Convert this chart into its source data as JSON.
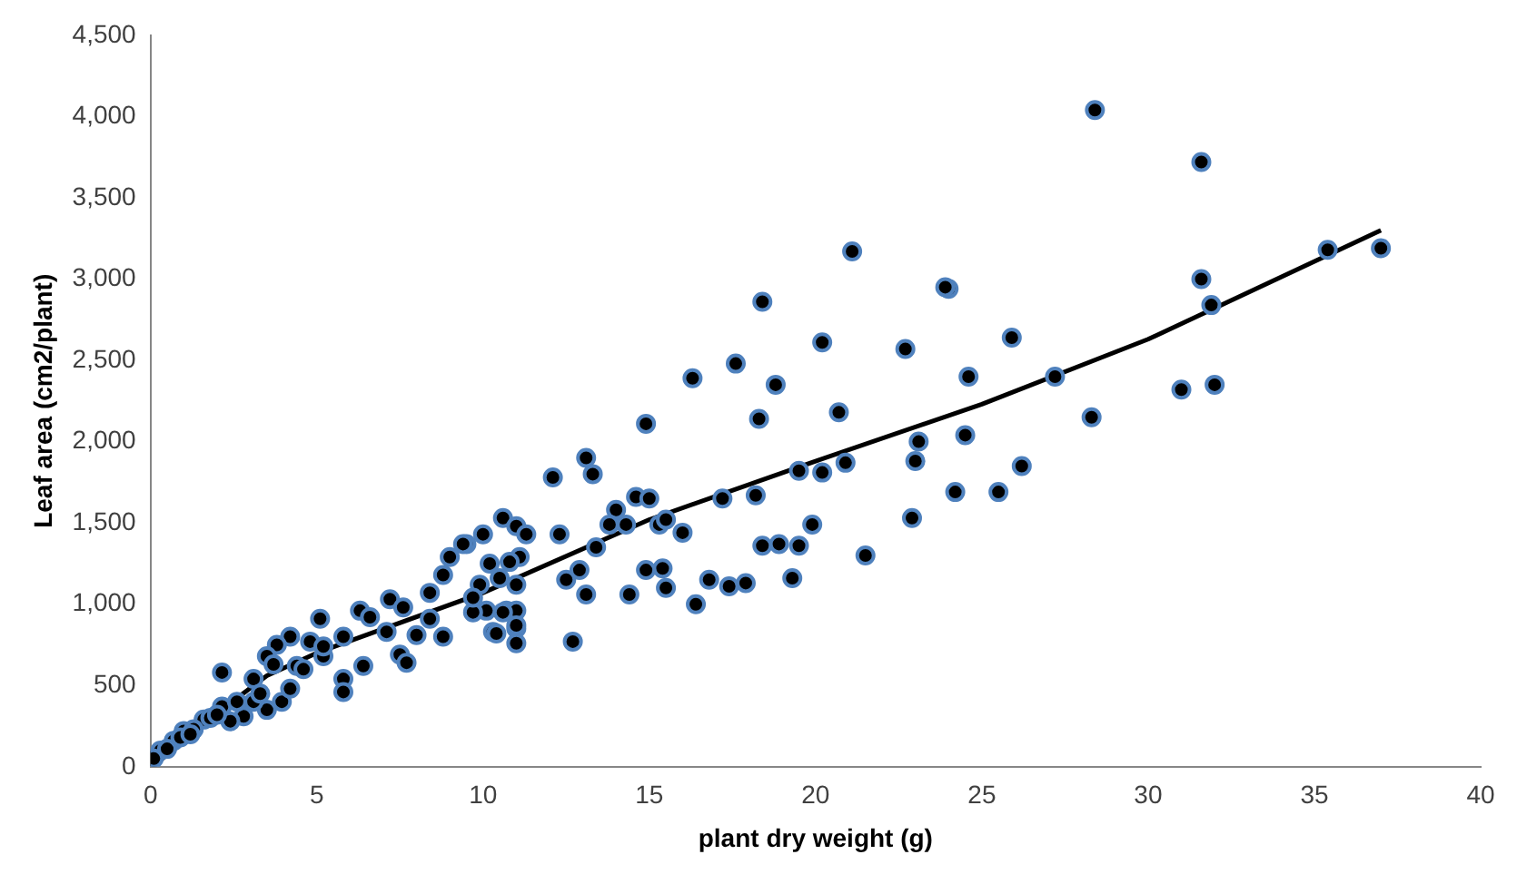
{
  "chart_data": {
    "type": "scatter",
    "xlabel": "plant dry weight (g)",
    "ylabel": "Leaf area (cm2/plant)",
    "xlim": [
      0,
      40
    ],
    "xticks": [
      0,
      5,
      10,
      15,
      20,
      25,
      30,
      35,
      40
    ],
    "ylim": [
      0,
      4500
    ],
    "yticks": [
      0,
      {
        "value": 500,
        "label": "500"
      },
      {
        "value": 1000,
        "label": "1,000"
      },
      {
        "value": 1500,
        "label": "1,500"
      },
      {
        "value": 2000,
        "label": "2,000"
      },
      {
        "value": 2500,
        "label": "2,500"
      },
      {
        "value": 3000,
        "label": "3,000"
      },
      {
        "value": 3500,
        "label": "3,500"
      },
      {
        "value": 4000,
        "label": "4,000"
      },
      {
        "value": 4500,
        "label": "4,500"
      }
    ],
    "grid": false,
    "legend": false,
    "marker": "circle",
    "series": [
      {
        "type": "scatter",
        "color": "#4f81bd",
        "x": [
          28.4,
          31.6,
          35.4,
          37,
          31.6,
          31.9,
          25.9,
          24.6,
          27.2,
          24,
          24.5,
          28.3,
          31,
          32,
          26.2,
          24.2,
          25.5,
          21.1,
          23.9,
          18.4,
          20.2,
          22.7,
          16.3,
          17.6,
          18.8,
          14.9,
          18.3,
          20.7,
          23.1,
          23,
          13.1,
          13.3,
          12.1,
          20.9,
          20.2,
          19.5,
          22.9,
          21.5,
          19.9,
          19.5,
          18.9,
          18.4,
          19.3,
          18.2,
          17.2,
          17.9,
          17.4,
          16.8,
          16.4,
          16,
          15.5,
          15.4,
          14.9,
          14.4,
          14.6,
          15,
          14,
          13.8,
          14.3,
          15.3,
          15.5,
          13.4,
          12.3,
          12.5,
          13.1,
          12.7,
          12.9,
          9.5,
          10,
          10.6,
          11,
          11.3,
          11.1,
          10.8,
          10.2,
          10.5,
          11,
          10.1,
          10.7,
          11,
          10.3,
          11,
          11,
          9.7,
          9.9,
          9.4,
          9,
          8.8,
          8.4,
          7.2,
          7.6,
          6.3,
          6.6,
          5.1,
          5.8,
          4.8,
          4.2,
          3.8,
          3.5,
          3.1,
          2.15,
          5.2,
          5.8,
          5.8,
          6.4,
          7.5,
          7.7,
          8.8,
          10.6,
          11,
          10.4,
          9.7,
          8.4,
          8,
          7.1,
          4.4,
          3.95,
          3.5,
          3.1,
          2.8,
          2.4,
          2.15,
          1.6,
          1,
          0.7,
          0.3,
          0.1,
          5.2,
          4.2,
          3.7,
          1.3,
          1.8,
          2,
          0.5,
          0.9,
          1.2,
          2.6,
          3.3,
          4.6
        ],
        "values": [
          4040,
          3720,
          3180,
          3190,
          3000,
          2840,
          2640,
          2400,
          2400,
          2940,
          2040,
          2150,
          2320,
          2350,
          1850,
          1690,
          1690,
          3170,
          2950,
          2860,
          2610,
          2570,
          2390,
          2480,
          2350,
          2110,
          2140,
          2180,
          2000,
          1880,
          1900,
          1800,
          1780,
          1870,
          1810,
          1820,
          1530,
          1300,
          1490,
          1360,
          1370,
          1360,
          1160,
          1670,
          1650,
          1130,
          1110,
          1150,
          1000,
          1440,
          1100,
          1220,
          1210,
          1060,
          1660,
          1650,
          1580,
          1490,
          1490,
          1490,
          1520,
          1350,
          1430,
          1150,
          1060,
          770,
          1210,
          1370,
          1430,
          1530,
          1480,
          1430,
          1290,
          1260,
          1250,
          1160,
          1120,
          960,
          960,
          960,
          830,
          850,
          760,
          950,
          1120,
          1370,
          1290,
          1180,
          1070,
          1030,
          980,
          960,
          920,
          910,
          800,
          770,
          800,
          750,
          680,
          540,
          580,
          680,
          540,
          460,
          620,
          690,
          640,
          800,
          950,
          870,
          820,
          1040,
          910,
          810,
          830,
          620,
          400,
          350,
          400,
          310,
          280,
          370,
          290,
          220,
          160,
          100,
          50,
          740,
          480,
          630,
          230,
          300,
          320,
          110,
          180,
          200,
          400,
          450,
          600
        ]
      },
      {
        "type": "line",
        "color": "#000000",
        "marker": "none",
        "x": [
          0.3,
          2,
          3.5,
          5,
          10,
          15,
          20,
          25,
          30,
          37
        ],
        "values": [
          40,
          330,
          560,
          700,
          1070,
          1520,
          1880,
          2230,
          2630,
          3300
        ]
      }
    ]
  }
}
